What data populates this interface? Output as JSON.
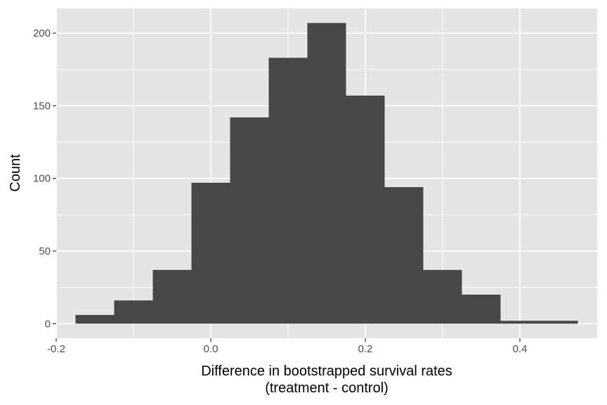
{
  "chart_data": {
    "type": "bar",
    "title": "",
    "xlabel_line1": "Difference in bootstrapped survival rates",
    "xlabel_line2": "(treatment - control)",
    "ylabel": "Count",
    "bin_width": 0.05,
    "bins": [
      {
        "x0": -0.175,
        "x1": -0.125,
        "count": 6
      },
      {
        "x0": -0.125,
        "x1": -0.075,
        "count": 16
      },
      {
        "x0": -0.075,
        "x1": -0.025,
        "count": 37
      },
      {
        "x0": -0.025,
        "x1": 0.025,
        "count": 97
      },
      {
        "x0": 0.025,
        "x1": 0.075,
        "count": 142
      },
      {
        "x0": 0.075,
        "x1": 0.125,
        "count": 183
      },
      {
        "x0": 0.125,
        "x1": 0.175,
        "count": 207
      },
      {
        "x0": 0.175,
        "x1": 0.225,
        "count": 157
      },
      {
        "x0": 0.225,
        "x1": 0.275,
        "count": 94
      },
      {
        "x0": 0.275,
        "x1": 0.325,
        "count": 37
      },
      {
        "x0": 0.325,
        "x1": 0.375,
        "count": 20
      },
      {
        "x0": 0.375,
        "x1": 0.425,
        "count": 2
      },
      {
        "x0": 0.425,
        "x1": 0.475,
        "count": 2
      }
    ],
    "xlim": [
      -0.2,
      0.5
    ],
    "ylim": [
      -10,
      217
    ],
    "x_ticks": [
      {
        "value": -0.2,
        "label": "-0.2"
      },
      {
        "value": 0.0,
        "label": "0.0"
      },
      {
        "value": 0.2,
        "label": "0.2"
      },
      {
        "value": 0.4,
        "label": "0.4"
      }
    ],
    "y_ticks": [
      {
        "value": 0,
        "label": "0"
      },
      {
        "value": 50,
        "label": "50"
      },
      {
        "value": 100,
        "label": "100"
      },
      {
        "value": 150,
        "label": "150"
      },
      {
        "value": 200,
        "label": "200"
      }
    ],
    "grid": true,
    "colors": {
      "panel": "#e5e5e5",
      "grid_major": "#ffffff",
      "bar_fill": "#474747",
      "tick_mark": "#333333"
    }
  }
}
